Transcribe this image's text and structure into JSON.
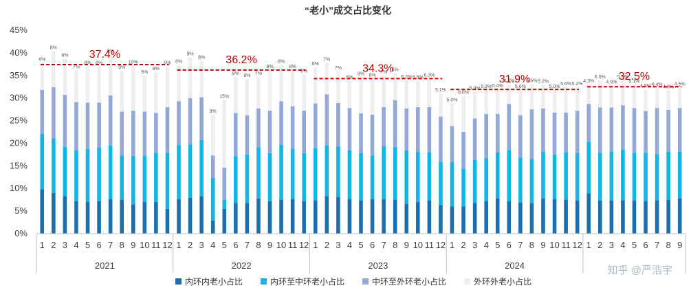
{
  "chart_data": {
    "type": "bar",
    "stacked": true,
    "title": "“老小”成交占比变化",
    "ylim": [
      0,
      45
    ],
    "y_ticks": [
      "0%",
      "5%",
      "10%",
      "15%",
      "20%",
      "25%",
      "30%",
      "35%",
      "40%",
      "45%"
    ],
    "grid": false,
    "legend_position": "bottom",
    "categories": [
      "2021-1",
      "2021-2",
      "2021-3",
      "2021-4",
      "2021-5",
      "2021-6",
      "2021-7",
      "2021-8",
      "2021-9",
      "2021-10",
      "2021-11",
      "2021-12",
      "2022-1",
      "2022-2",
      "2022-3",
      "2022-4",
      "2022-5",
      "2022-6",
      "2022-7",
      "2022-8",
      "2022-9",
      "2022-10",
      "2022-11",
      "2022-12",
      "2023-1",
      "2023-2",
      "2023-3",
      "2023-4",
      "2023-5",
      "2023-6",
      "2023-7",
      "2023-8",
      "2023-9",
      "2023-10",
      "2023-11",
      "2023-12",
      "2024-1",
      "2024-2",
      "2024-3",
      "2024-4",
      "2024-5",
      "2024-6",
      "2024-7",
      "2024-8",
      "2024-9",
      "2024-10",
      "2024-11",
      "2024-12",
      "2025-1",
      "2025-2",
      "2025-3",
      "2025-4",
      "2025-5",
      "2025-6",
      "2025-7",
      "2025-8",
      "2025-9"
    ],
    "month_labels": [
      "1",
      "2",
      "3",
      "4",
      "5",
      "6",
      "7",
      "8",
      "9",
      "10",
      "11",
      "12",
      "1",
      "2",
      "3",
      "4",
      "5",
      "6",
      "7",
      "8",
      "9",
      "10",
      "11",
      "12",
      "1",
      "2",
      "3",
      "4",
      "5",
      "6",
      "7",
      "8",
      "9",
      "10",
      "11",
      "12",
      "1",
      "2",
      "3",
      "4",
      "5",
      "6",
      "7",
      "8",
      "9",
      "10",
      "11",
      "12",
      "1",
      "2",
      "3",
      "4",
      "5",
      "6",
      "7",
      "8",
      "9"
    ],
    "years": [
      {
        "label": "2021",
        "months": 12
      },
      {
        "label": "2022",
        "months": 12
      },
      {
        "label": "2023",
        "months": 12
      },
      {
        "label": "2024",
        "months": 12
      },
      {
        "label": "",
        "months": 9
      }
    ],
    "series": [
      {
        "name": "内环内老小占比",
        "color": "#1a6faf",
        "values": [
          9.8,
          9,
          8.3,
          7.2,
          7,
          7.2,
          7.6,
          7.5,
          6.5,
          7,
          7,
          5.5,
          7.6,
          7.9,
          8.3,
          2.9,
          5.5,
          6.8,
          6.8,
          7.8,
          7.2,
          7.5,
          7.6,
          7.2,
          7.4,
          8.3,
          8.1,
          7.6,
          7.3,
          7.6,
          7.6,
          7.5,
          6.6,
          7,
          7.4,
          6.3,
          6,
          6,
          6.8,
          7.2,
          7.8,
          7.2,
          6.9,
          6.7,
          7.8,
          7.6,
          7.5,
          7.3,
          8.9,
          7.3,
          7.3,
          7.4,
          7.3,
          7.2,
          7.4,
          7.5,
          7.8
        ]
      },
      {
        "name": "内环至中环老小占比",
        "color": "#12b5e8",
        "values": [
          12.3,
          12.1,
          10.9,
          11.2,
          11.7,
          11.8,
          11.9,
          9.8,
          10.7,
          10.2,
          10.9,
          12.4,
          12,
          11.8,
          12.4,
          9.4,
          2,
          10.3,
          10.7,
          11.3,
          10.6,
          12.1,
          11.1,
          10.6,
          11.5,
          11.2,
          11.2,
          10.8,
          10.5,
          9.7,
          11.7,
          11.7,
          11.8,
          11.1,
          10.6,
          9.6,
          9.8,
          8.4,
          9.5,
          9.5,
          10.2,
          11.3,
          9.9,
          9.8,
          10.4,
          9.9,
          10.5,
          10.6,
          11.4,
          10.6,
          10.9,
          11.2,
          10.6,
          10.7,
          10.2,
          10.6,
          10.3
        ]
      },
      {
        "name": "中环至外环老小占比",
        "color": "#94a8d8",
        "values": [
          9.7,
          11.3,
          11.5,
          10.7,
          10.3,
          10,
          11.1,
          9.7,
          10,
          9.8,
          8.8,
          10.1,
          9.7,
          10.3,
          9.5,
          5,
          7.1,
          9.6,
          8.7,
          8.6,
          9.4,
          9.7,
          9.5,
          9.4,
          9.9,
          11.3,
          9.6,
          9.4,
          8.8,
          9,
          8.7,
          10.3,
          9.3,
          9.9,
          10,
          10,
          8,
          8.1,
          9.2,
          9.8,
          8.5,
          10.2,
          9.4,
          11,
          9.5,
          9.3,
          8.8,
          9.3,
          8.4,
          10,
          9.7,
          9.8,
          9.9,
          9.2,
          10.2,
          9.3,
          9.7
        ]
      },
      {
        "name": "外环外老小占比",
        "color": "#eeeeee",
        "values": [
          6,
          8,
          8,
          7,
          8,
          8,
          9,
          9,
          10,
          8,
          9,
          9,
          8,
          9,
          8,
          9,
          15,
          8,
          8,
          7,
          9,
          8,
          8,
          8,
          8,
          7,
          7,
          6,
          8,
          8,
          7,
          6,
          6.2,
          5.8,
          6.3,
          5.1,
          5,
          8,
          5.9,
          5.3,
          5.4,
          4.4,
          5.6,
          5.6,
          5.2,
          5,
          5.6,
          5.2,
          4.3,
          6,
          4.9,
          5.5,
          5.1,
          4.8,
          4.4,
          4.3,
          4.5
        ]
      }
    ],
    "outer_labels": [
      "6%",
      "8%",
      "8%",
      "7%",
      "8%",
      "8%",
      "9%",
      "9%",
      "10%",
      "8%",
      "9%",
      "9%",
      "8%",
      "9%",
      "8%",
      "9%",
      "15%",
      "8%",
      "8%",
      "7%",
      "9%",
      "8%",
      "8%",
      "8%",
      "8%",
      "7%",
      "7%",
      "6%",
      "8%",
      "8%",
      "7%",
      "6%",
      "6.2%",
      "5.8%",
      "6.3%",
      "5.1%",
      "5.0%",
      "8.0%",
      "5.9%",
      "5.3%",
      "5.4%",
      "4.4%",
      "5.6%",
      "5.6%",
      "5.2%",
      "5.0%",
      "5.6%",
      "5.2%",
      "4.3%",
      "6.0%",
      "4.9%",
      "5.5%",
      "5.1%",
      "4.8%",
      "4.4%",
      "4.3%",
      "4.5%"
    ],
    "annual_averages": [
      {
        "year": "2021",
        "label": "37.4%",
        "value": 37.4
      },
      {
        "year": "2022",
        "label": "36.2%",
        "value": 36.2
      },
      {
        "year": "2023",
        "label": "34.3%",
        "value": 34.3
      },
      {
        "year": "2024",
        "label": "31.9%",
        "value": 31.9
      },
      {
        "year": "2025",
        "label": "32.5%",
        "value": 32.5
      }
    ]
  },
  "watermark": "知乎 @严浩宇"
}
